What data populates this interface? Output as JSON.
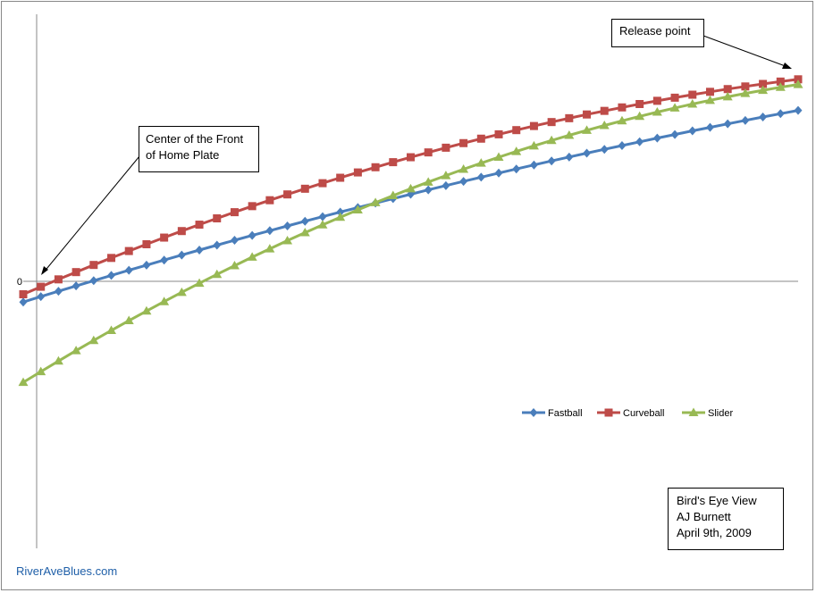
{
  "chart_data": {
    "type": "line",
    "ytick_label": "0",
    "series": [
      {
        "name": "Fastball",
        "color": "#4a7ebb",
        "marker": "diamond",
        "start": -0.8,
        "end": 6.6,
        "curvature": 0.25
      },
      {
        "name": "Curveball",
        "color": "#be4b48",
        "marker": "square",
        "start": -0.5,
        "end": 7.8,
        "curvature": 0.55
      },
      {
        "name": "Slider",
        "color": "#98b954",
        "marker": "triangle",
        "start": -3.9,
        "end": 7.6,
        "curvature": 0.6
      }
    ],
    "points": 45,
    "legend_position": "right-middle"
  },
  "annotations": {
    "release_point": "Release point",
    "home_plate_line1": "Center of the Front",
    "home_plate_line2": "of Home Plate"
  },
  "info_box": {
    "line1": "Bird's Eye View",
    "line2": "AJ Burnett",
    "line3": "April 9th, 2009"
  },
  "footer": "RiverAveBlues.com"
}
